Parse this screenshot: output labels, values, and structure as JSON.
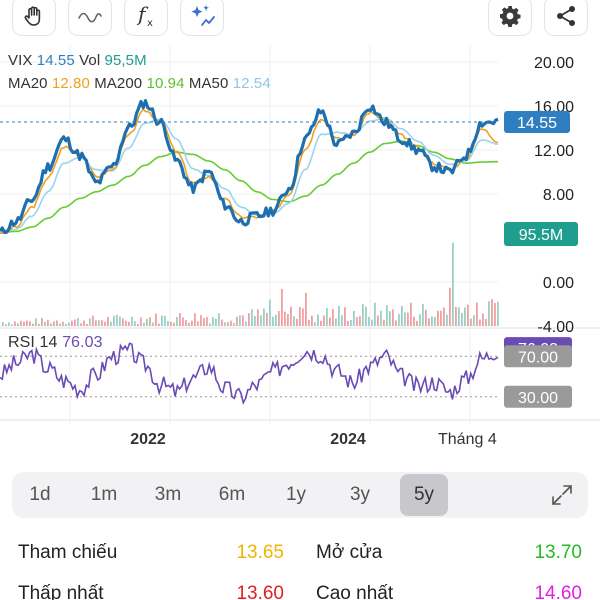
{
  "toolbar": {
    "buttons": [
      {
        "icon": "hand-icon"
      },
      {
        "icon": "wave-icon"
      },
      {
        "icon": "function-icon",
        "glyph": "f",
        "sub": "x"
      },
      {
        "icon": "sparkle-icon"
      },
      {
        "icon": "gear-icon"
      },
      {
        "icon": "share-icon"
      }
    ]
  },
  "legend": {
    "symbol": "VIX",
    "price": "14.55",
    "vol_label": "Vol",
    "vol_value": "95,5M",
    "ma20_label": "MA20",
    "ma20_value": "12.80",
    "ma200_label": "MA200",
    "ma200_value": "10.94",
    "ma50_label": "MA50",
    "ma50_value": "12.54",
    "rsi_label": "RSI 14",
    "rsi_value": "76.03"
  },
  "colors": {
    "price": "#1e6fb0",
    "ma20": "#f0a020",
    "ma200": "#66cc33",
    "ma50": "#9dd3ee",
    "rsi": "#6a4bb5",
    "vol_up": "#9ad0c6",
    "vol_down": "#f0a0a0",
    "price_badge": "#2f7fc0",
    "vol_badge": "#1e9e8e",
    "rsi_badge": "#6a4bb5",
    "grey_badge": "#9a9a9a"
  },
  "price_axis": {
    "ticks": [
      "20.00",
      "16.00",
      "12.00",
      "8.00",
      "0.00",
      "-4.00"
    ],
    "current_badge": "14.55",
    "volume_badge": "95.5M"
  },
  "rsi_axis": {
    "current_badge": "76.03",
    "upper": "70.00",
    "lower": "30.00"
  },
  "x_axis": {
    "labels": [
      "2022",
      "2024",
      "Tháng 4"
    ]
  },
  "timeframes": {
    "items": [
      "1d",
      "1m",
      "3m",
      "6m",
      "1y",
      "3y",
      "5y"
    ],
    "active": "5y"
  },
  "stats": {
    "ref_label": "Tham chiếu",
    "ref_value": "13.65",
    "open_label": "Mở cửa",
    "open_value": "13.70",
    "low_label": "Thấp nhất",
    "low_value": "13.60",
    "high_label": "Cao nhất",
    "high_value": "14.60",
    "ref_color": "#f0b400",
    "open_color": "#22bb22",
    "low_color": "#e02020",
    "high_color": "#e020e0"
  },
  "chart_data": {
    "type": "line",
    "series": [
      {
        "name": "VIX",
        "values": [
          4.5,
          5.5,
          7.5,
          10.5,
          13.0,
          11.5,
          9.0,
          10.5,
          14.0,
          16.3,
          14.5,
          11.0,
          8.5,
          10.0,
          7.0,
          5.5,
          6.0,
          6.5,
          8.5,
          13.0,
          15.5,
          12.5,
          13.5,
          16.0,
          14.5,
          13.0,
          12.0,
          10.5,
          10.0,
          11.5,
          14.5,
          14.6
        ]
      },
      {
        "name": "MA20",
        "values": [
          4.5,
          5.0,
          6.8,
          9.5,
          12.3,
          11.6,
          9.6,
          10.2,
          13.3,
          15.6,
          14.6,
          11.8,
          9.0,
          9.6,
          7.5,
          5.9,
          5.9,
          6.4,
          8.0,
          12.1,
          14.9,
          13.0,
          13.4,
          15.4,
          14.7,
          13.3,
          12.2,
          10.8,
          10.2,
          11.2,
          13.9,
          12.8
        ]
      },
      {
        "name": "MA50",
        "values": [
          4.5,
          4.8,
          6.0,
          8.2,
          10.8,
          11.3,
          10.2,
          10.1,
          12.2,
          14.4,
          14.8,
          13.0,
          10.3,
          9.7,
          8.5,
          6.8,
          6.1,
          6.2,
          7.2,
          10.2,
          13.4,
          13.6,
          13.4,
          14.6,
          14.9,
          13.9,
          12.8,
          11.5,
          10.7,
          11.0,
          12.9,
          12.54
        ]
      },
      {
        "name": "MA200",
        "values": [
          4.5,
          4.6,
          5.0,
          5.8,
          6.8,
          7.6,
          8.2,
          8.8,
          9.6,
          10.6,
          11.4,
          11.8,
          11.6,
          11.0,
          10.2,
          9.2,
          8.2,
          7.5,
          7.3,
          7.8,
          8.8,
          9.8,
          10.8,
          11.8,
          12.6,
          12.8,
          12.4,
          11.8,
          11.2,
          10.8,
          10.9,
          10.94
        ]
      }
    ],
    "rsi": [
      52,
      63,
      72,
      58,
      46,
      38,
      52,
      70,
      75,
      62,
      42,
      35,
      48,
      60,
      38,
      30,
      42,
      55,
      65,
      76,
      72,
      55,
      44,
      60,
      70,
      50,
      40,
      45,
      35,
      48,
      68,
      76.03
    ],
    "rsi_levels": [
      30,
      70
    ],
    "ylim": [
      -4,
      20
    ],
    "x_labels": [
      "2022",
      "2024",
      "Tháng 4"
    ]
  }
}
